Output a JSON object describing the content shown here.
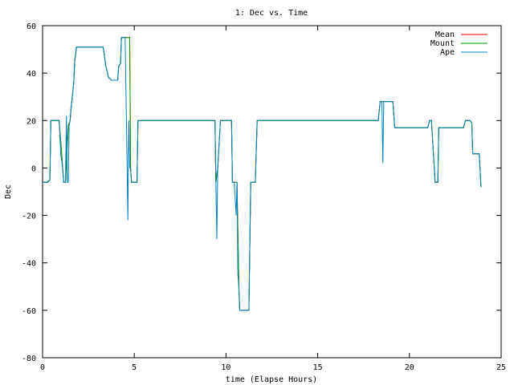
{
  "chart_data": {
    "type": "line",
    "title": "1: Dec vs. Time",
    "xlabel": "time (Elapse Hours)",
    "ylabel": "Dec",
    "xlim": [
      0,
      25
    ],
    "ylim": [
      -80,
      60
    ],
    "xticks": [
      0,
      5,
      10,
      15,
      20,
      25
    ],
    "xtick_labels": [
      "0",
      "5",
      "10",
      "15",
      "20",
      "25"
    ],
    "yticks": [
      -80,
      -60,
      -40,
      -20,
      0,
      20,
      40,
      60
    ],
    "ytick_labels": [
      "-80",
      "-60",
      "-40",
      "-20",
      "0",
      "20",
      "40",
      "60"
    ],
    "grid": false,
    "legend_position": "top-right",
    "series": [
      {
        "name": "Mean",
        "color": "#e00000",
        "x": [
          0,
          0.25,
          0.4,
          0.45,
          0.9,
          1.05,
          1.15,
          1.25,
          1.4,
          1.5,
          1.55,
          1.65,
          1.7,
          1.75,
          1.85,
          1.95,
          2.1,
          3.3,
          3.45,
          3.6,
          3.65,
          3.75,
          4.1,
          4.15,
          4.25,
          4.3,
          4.35,
          4.4,
          4.5,
          4.75,
          4.8,
          4.85,
          4.9,
          5.15,
          5.2,
          9.4,
          9.45,
          9.55,
          9.7,
          9.75,
          10.3,
          10.35,
          10.45,
          10.6,
          10.7,
          10.75,
          11.25,
          11.35,
          11.6,
          11.7,
          18.3,
          18.4,
          18.5,
          18.6,
          19.1,
          19.2,
          20.9,
          21.0,
          21.1,
          21.2,
          21.4,
          21.55,
          21.6,
          22.9,
          22.95,
          23.05,
          23.3,
          23.4,
          23.45,
          23.8,
          23.85,
          23.9
        ],
        "y": [
          -6,
          -6,
          -5,
          20,
          20,
          5,
          -6,
          -6,
          18,
          20,
          25,
          32,
          36,
          45,
          51,
          51,
          51,
          51,
          43,
          38,
          38,
          37,
          37,
          43,
          44,
          55,
          55,
          55,
          55,
          55,
          0,
          -6,
          -6,
          -6,
          20,
          20,
          -6,
          0,
          20,
          20,
          20,
          -6,
          -6,
          -6,
          -50,
          -60,
          -60,
          -6,
          -6,
          20,
          20,
          28,
          28,
          28,
          28,
          17,
          17,
          17,
          20,
          20,
          -6,
          -6,
          17,
          17,
          17,
          20,
          20,
          19,
          6,
          6,
          0,
          -8
        ]
      },
      {
        "name": "Mount",
        "color": "#00a000",
        "x": [
          0,
          0.25,
          0.4,
          0.45,
          0.9,
          1.05,
          1.15,
          1.25,
          1.4,
          1.5,
          1.55,
          1.65,
          1.7,
          1.75,
          1.85,
          1.95,
          2.1,
          3.3,
          3.45,
          3.6,
          3.65,
          3.75,
          4.1,
          4.15,
          4.25,
          4.3,
          4.35,
          4.4,
          4.5,
          4.75,
          4.8,
          4.85,
          4.9,
          5.15,
          5.2,
          9.4,
          9.45,
          9.55,
          9.7,
          9.75,
          10.3,
          10.35,
          10.45,
          10.6,
          10.7,
          10.75,
          11.25,
          11.35,
          11.6,
          11.7,
          18.3,
          18.4,
          18.5,
          18.6,
          19.1,
          19.2,
          20.9,
          21.0,
          21.1,
          21.2,
          21.4,
          21.55,
          21.6,
          22.9,
          22.95,
          23.05,
          23.3,
          23.4,
          23.45,
          23.8,
          23.85,
          23.9
        ],
        "y": [
          -6,
          -6,
          -5,
          20,
          20,
          5,
          -6,
          -6,
          18,
          20,
          25,
          32,
          36,
          45,
          51,
          51,
          51,
          51,
          43,
          38,
          38,
          37,
          37,
          43,
          44,
          55,
          55,
          55,
          55,
          55,
          0,
          -6,
          -6,
          -6,
          20,
          20,
          -6,
          0,
          20,
          20,
          20,
          -6,
          -6,
          -6,
          -50,
          -60,
          -60,
          -6,
          -6,
          20,
          20,
          28,
          28,
          28,
          28,
          17,
          17,
          17,
          20,
          20,
          -6,
          -6,
          17,
          17,
          17,
          20,
          20,
          19,
          6,
          6,
          0,
          -8
        ]
      },
      {
        "name": "Ape",
        "color": "#0080c0",
        "x": [
          0,
          0.25,
          0.3,
          0.4,
          0.45,
          0.9,
          1.0,
          1.05,
          1.15,
          1.25,
          1.3,
          1.35,
          1.4,
          1.45,
          1.5,
          1.55,
          1.65,
          1.7,
          1.75,
          1.85,
          1.95,
          2.1,
          3.3,
          3.45,
          3.6,
          3.65,
          3.75,
          4.1,
          4.15,
          4.25,
          4.3,
          4.35,
          4.4,
          4.5,
          4.6,
          4.65,
          4.7,
          4.75,
          4.8,
          4.85,
          4.9,
          5.15,
          5.2,
          9.4,
          9.45,
          9.5,
          9.55,
          9.7,
          9.75,
          10.3,
          10.35,
          10.45,
          10.55,
          10.6,
          10.65,
          10.7,
          10.75,
          11.25,
          11.35,
          11.6,
          11.7,
          18.3,
          18.4,
          18.5,
          18.55,
          18.6,
          19.1,
          19.2,
          20.9,
          21.0,
          21.1,
          21.2,
          21.4,
          21.55,
          21.6,
          22.9,
          22.95,
          23.05,
          23.3,
          23.4,
          23.45,
          23.8,
          23.85,
          23.9
        ],
        "y": [
          -6,
          -6,
          -6,
          -5,
          20,
          20,
          5,
          3,
          -6,
          -6,
          22,
          -6,
          -6,
          18,
          20,
          25,
          32,
          36,
          45,
          51,
          51,
          51,
          51,
          43,
          38,
          38,
          37,
          37,
          43,
          44,
          55,
          55,
          55,
          55,
          5,
          -22,
          20,
          0,
          0,
          -6,
          -6,
          -6,
          20,
          20,
          -6,
          -30,
          0,
          20,
          20,
          20,
          -6,
          -6,
          -20,
          -6,
          -45,
          -50,
          -60,
          -60,
          -6,
          -6,
          20,
          20,
          28,
          28,
          2,
          28,
          28,
          17,
          17,
          17,
          20,
          20,
          -6,
          -6,
          17,
          17,
          17,
          20,
          20,
          19,
          6,
          6,
          0,
          -8
        ]
      }
    ]
  }
}
